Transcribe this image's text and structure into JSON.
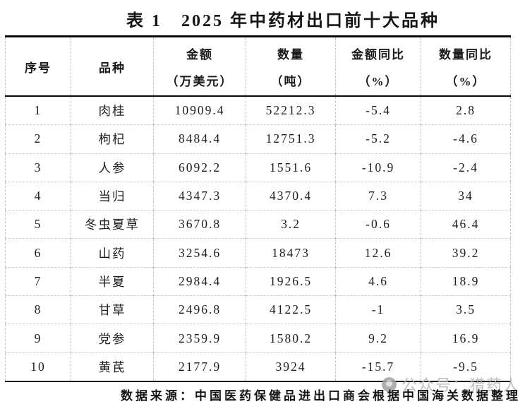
{
  "title": "表 1　2025 年中药材出口前十大品种",
  "table": {
    "columns": [
      {
        "key": "rank",
        "title": "序号",
        "unit": ""
      },
      {
        "key": "variety",
        "title": "品种",
        "unit": ""
      },
      {
        "key": "amount",
        "title": "金额",
        "unit": "（万美元）"
      },
      {
        "key": "quantity",
        "title": "数量",
        "unit": "（吨）"
      },
      {
        "key": "amount-yoy",
        "title": "金额同比",
        "unit": "（%）"
      },
      {
        "key": "quantity-yoy",
        "title": "数量同比",
        "unit": "（%）"
      }
    ],
    "rows": [
      [
        "1",
        "肉桂",
        "10909.4",
        "52212.3",
        "-5.4",
        "2.8"
      ],
      [
        "2",
        "枸杞",
        "8484.4",
        "12751.3",
        "-5.2",
        "-4.6"
      ],
      [
        "3",
        "人参",
        "6092.2",
        "1551.6",
        "-10.9",
        "-2.4"
      ],
      [
        "4",
        "当归",
        "4347.3",
        "4370.4",
        "7.3",
        "34"
      ],
      [
        "5",
        "冬虫夏草",
        "3670.8",
        "3.2",
        "-0.6",
        "46.4"
      ],
      [
        "6",
        "山药",
        "3254.6",
        "18473",
        "12.6",
        "39.2"
      ],
      [
        "7",
        "半夏",
        "2984.4",
        "1926.5",
        "4.6",
        "18.9"
      ],
      [
        "8",
        "甘草",
        "2496.8",
        "4122.5",
        "-1",
        "3.5"
      ],
      [
        "9",
        "党参",
        "2359.9",
        "1580.2",
        "9.2",
        "16.9"
      ],
      [
        "10",
        "黄芪",
        "2177.9",
        "3924",
        "-15.7",
        "-9.5"
      ]
    ]
  },
  "footer": {
    "source": "数据来源：中国医药保健品进出口商会根据中国海关数据整理"
  },
  "watermark": {
    "text": "公众号：猎药人"
  },
  "colors": {
    "border_strong": "#0a0a0a",
    "grid_dashed": "#c2c2c2",
    "text": "#1d1d1d",
    "watermark_gray": "#b5b5b5"
  }
}
